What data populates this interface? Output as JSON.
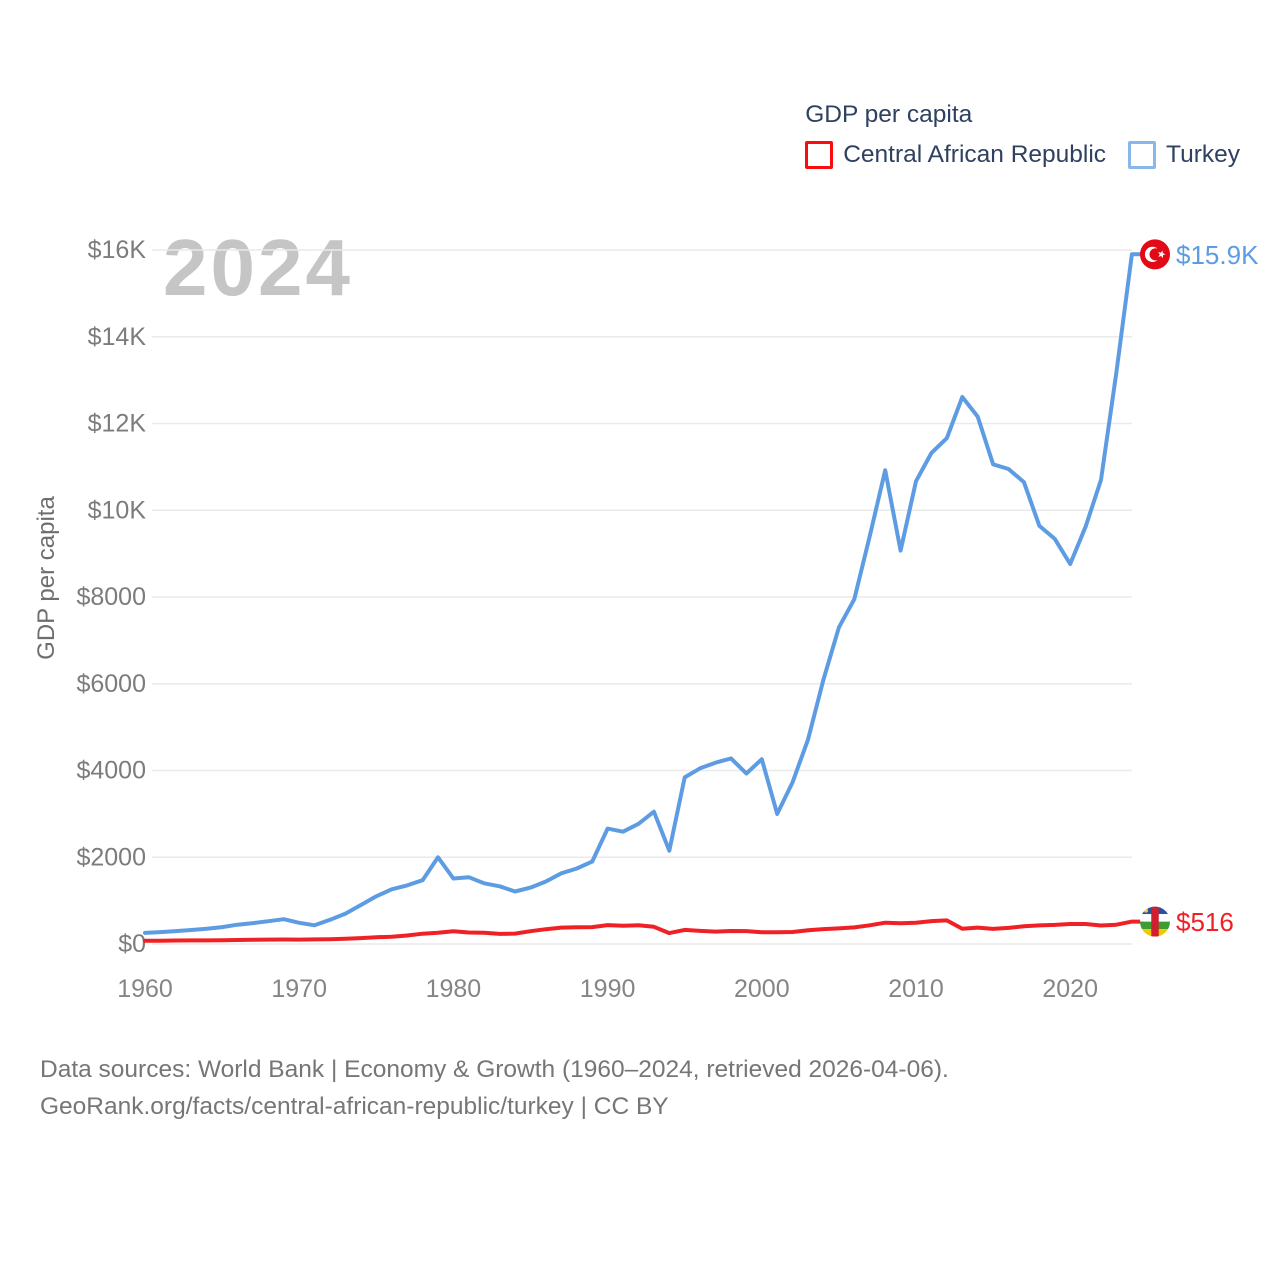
{
  "legend": {
    "title": "GDP per capita",
    "items": [
      {
        "label": "Central African Republic",
        "color": "#fb0b0f"
      },
      {
        "label": "Turkey",
        "color": "#88b8ea"
      }
    ]
  },
  "watermark": "2024",
  "y_axis_title": "GDP per capita",
  "end_labels": {
    "turkey": {
      "text": "$15.9K",
      "color": "#5d9ce2"
    },
    "car": {
      "text": "$516",
      "color": "#ef2125"
    }
  },
  "footer": {
    "line1": "Data sources: World Bank | Economy & Growth (1960–2024, retrieved 2026-04-06).",
    "line2": "GeoRank.org/facts/central-african-republic/turkey | CC BY"
  },
  "chart_data": {
    "type": "line",
    "title": "GDP per capita",
    "ylabel": "GDP per capita",
    "ylim": [
      0,
      16000
    ],
    "grid": true,
    "legend_position": "top-right",
    "x": [
      1960,
      1961,
      1962,
      1963,
      1964,
      1965,
      1966,
      1967,
      1968,
      1969,
      1970,
      1971,
      1972,
      1973,
      1974,
      1975,
      1976,
      1977,
      1978,
      1979,
      1980,
      1981,
      1982,
      1983,
      1984,
      1985,
      1986,
      1987,
      1988,
      1989,
      1990,
      1991,
      1992,
      1993,
      1994,
      1995,
      1996,
      1997,
      1998,
      1999,
      2000,
      2001,
      2002,
      2003,
      2004,
      2005,
      2006,
      2007,
      2008,
      2009,
      2010,
      2011,
      2012,
      2013,
      2014,
      2015,
      2016,
      2017,
      2018,
      2019,
      2020,
      2021,
      2022,
      2023,
      2024
    ],
    "x_ticks": [
      1960,
      1970,
      1980,
      1990,
      2000,
      2010,
      2020
    ],
    "y_ticks": [
      {
        "label": "$0",
        "value": 0
      },
      {
        "label": "$2000",
        "value": 2000
      },
      {
        "label": "$4000",
        "value": 4000
      },
      {
        "label": "$6000",
        "value": 6000
      },
      {
        "label": "$8000",
        "value": 8000
      },
      {
        "label": "$10K",
        "value": 10000
      },
      {
        "label": "$12K",
        "value": 12000
      },
      {
        "label": "$14K",
        "value": 14000
      },
      {
        "label": "$16K",
        "value": 16000
      }
    ],
    "series": [
      {
        "name": "Turkey",
        "color": "#5d9ce2",
        "flag": "turkey",
        "end_value_label": "$15.9K",
        "values": [
          256,
          275,
          297,
          322,
          352,
          390,
          444,
          481,
          526,
          571,
          489,
          430,
          558,
          700,
          900,
          1100,
          1260,
          1350,
          1470,
          2000,
          1510,
          1540,
          1400,
          1330,
          1210,
          1300,
          1440,
          1630,
          1740,
          1900,
          2660,
          2590,
          2770,
          3050,
          2150,
          3840,
          4050,
          4180,
          4280,
          3930,
          4260,
          3000,
          3730,
          4720,
          6100,
          7300,
          7950,
          9400,
          10920,
          9070,
          10670,
          11320,
          11660,
          12610,
          12160,
          11060,
          10950,
          10650,
          9640,
          9340,
          8760,
          9620,
          10700,
          13200,
          15900
        ]
      },
      {
        "name": "Central African Republic",
        "color": "#ef2125",
        "flag": "central-african-republic",
        "end_value_label": "$516",
        "values": [
          74,
          77,
          80,
          82,
          84,
          88,
          92,
          97,
          101,
          104,
          102,
          106,
          110,
          122,
          135,
          156,
          166,
          196,
          237,
          260,
          292,
          266,
          259,
          232,
          240,
          295,
          341,
          377,
          387,
          390,
          435,
          420,
          430,
          396,
          252,
          325,
          301,
          287,
          300,
          297,
          270,
          269,
          277,
          315,
          344,
          360,
          383,
          432,
          490,
          479,
          488,
          527,
          545,
          350,
          377,
          348,
          371,
          408,
          428,
          440,
          460,
          461,
          427,
          445,
          516
        ]
      }
    ]
  }
}
